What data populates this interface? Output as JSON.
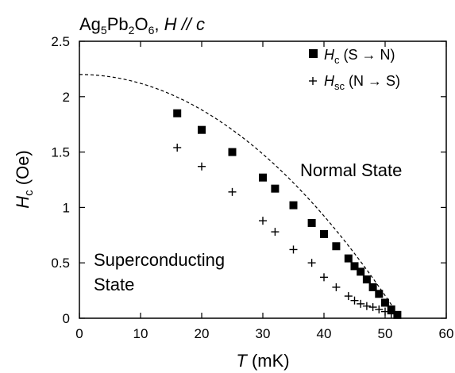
{
  "chart_data": {
    "type": "scatter",
    "title": {
      "compound": {
        "a": "Ag",
        "a_sub": "5",
        "b": "Pb",
        "b_sub": "2",
        "c": "O",
        "c_sub": "6"
      },
      "sep": ", ",
      "field": "H",
      "rest": " // ",
      "axis": "c"
    },
    "xlabel": {
      "sym": "T",
      "unit": " (mK)"
    },
    "ylabel": {
      "sym": "H",
      "sub": "c",
      "unit": " (Oe)"
    },
    "xlim": [
      0,
      60
    ],
    "ylim": [
      0,
      2.5
    ],
    "x_ticks": [
      0,
      10,
      20,
      30,
      40,
      50,
      60
    ],
    "x_tick_labels": [
      "0",
      "10",
      "20",
      "30",
      "40",
      "50",
      "60"
    ],
    "y_ticks": [
      0,
      0.5,
      1,
      1.5,
      2,
      2.5
    ],
    "y_tick_labels": [
      "0",
      "0.5",
      "1",
      "1.5",
      "2",
      "2.5"
    ],
    "grid": false,
    "legend_position": "top-right",
    "series": [
      {
        "marker": "square",
        "legend": {
          "sym": "H",
          "sub": "c",
          "text": "  (S → N)"
        },
        "x": [
          16,
          20,
          25,
          30,
          32,
          35,
          38,
          40,
          42,
          44,
          45,
          46,
          47,
          48,
          49,
          50,
          51,
          52
        ],
        "y": [
          1.85,
          1.7,
          1.5,
          1.27,
          1.17,
          1.02,
          0.86,
          0.76,
          0.65,
          0.54,
          0.47,
          0.42,
          0.35,
          0.28,
          0.22,
          0.14,
          0.08,
          0.03
        ]
      },
      {
        "marker": "plus",
        "legend": {
          "sym": "H",
          "sub": "sc",
          "text": " (N → S)"
        },
        "x": [
          16,
          20,
          25,
          30,
          32,
          35,
          38,
          40,
          42,
          44,
          45,
          46,
          47,
          48,
          49,
          50,
          51
        ],
        "y": [
          1.54,
          1.37,
          1.14,
          0.88,
          0.78,
          0.62,
          0.5,
          0.37,
          0.28,
          0.2,
          0.16,
          0.13,
          0.11,
          0.1,
          0.08,
          0.06,
          0.04
        ]
      }
    ],
    "fit_curve": {
      "style": "dashed",
      "form": "Hc0*(1-(T/Tc)^2)",
      "Hc0": 2.2,
      "Tc": 52.5
    },
    "annotations": [
      "Normal State",
      "Superconducting",
      "State"
    ]
  }
}
